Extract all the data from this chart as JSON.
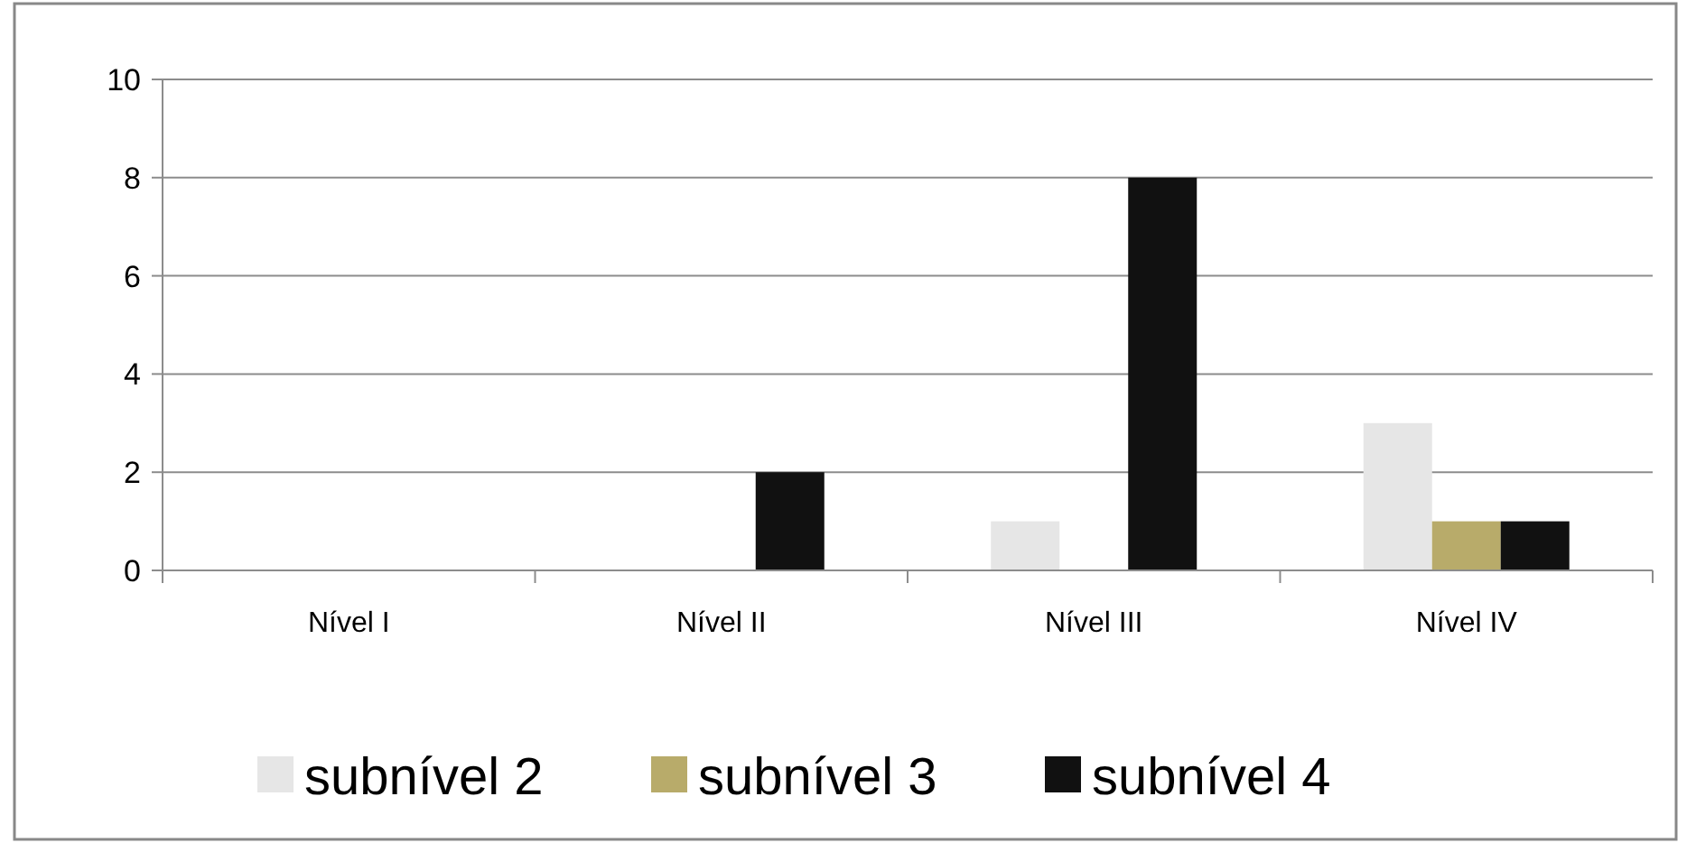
{
  "chart_data": {
    "type": "bar",
    "categories": [
      "Nível I",
      "Nível II",
      "Nível III",
      "Nível IV"
    ],
    "series": [
      {
        "name": "subnível 2",
        "color": "#e6e6e6",
        "values": [
          0,
          0,
          1,
          3
        ]
      },
      {
        "name": "subnível 3",
        "color": "#b8ab6a",
        "values": [
          0,
          0,
          0,
          1
        ]
      },
      {
        "name": "subnível 4",
        "color": "#111111",
        "values": [
          0,
          2,
          8,
          1
        ]
      }
    ],
    "ylim": [
      0,
      10
    ],
    "yticks": [
      0,
      2,
      4,
      6,
      8,
      10
    ],
    "grid": "y",
    "legend": "bottom"
  }
}
